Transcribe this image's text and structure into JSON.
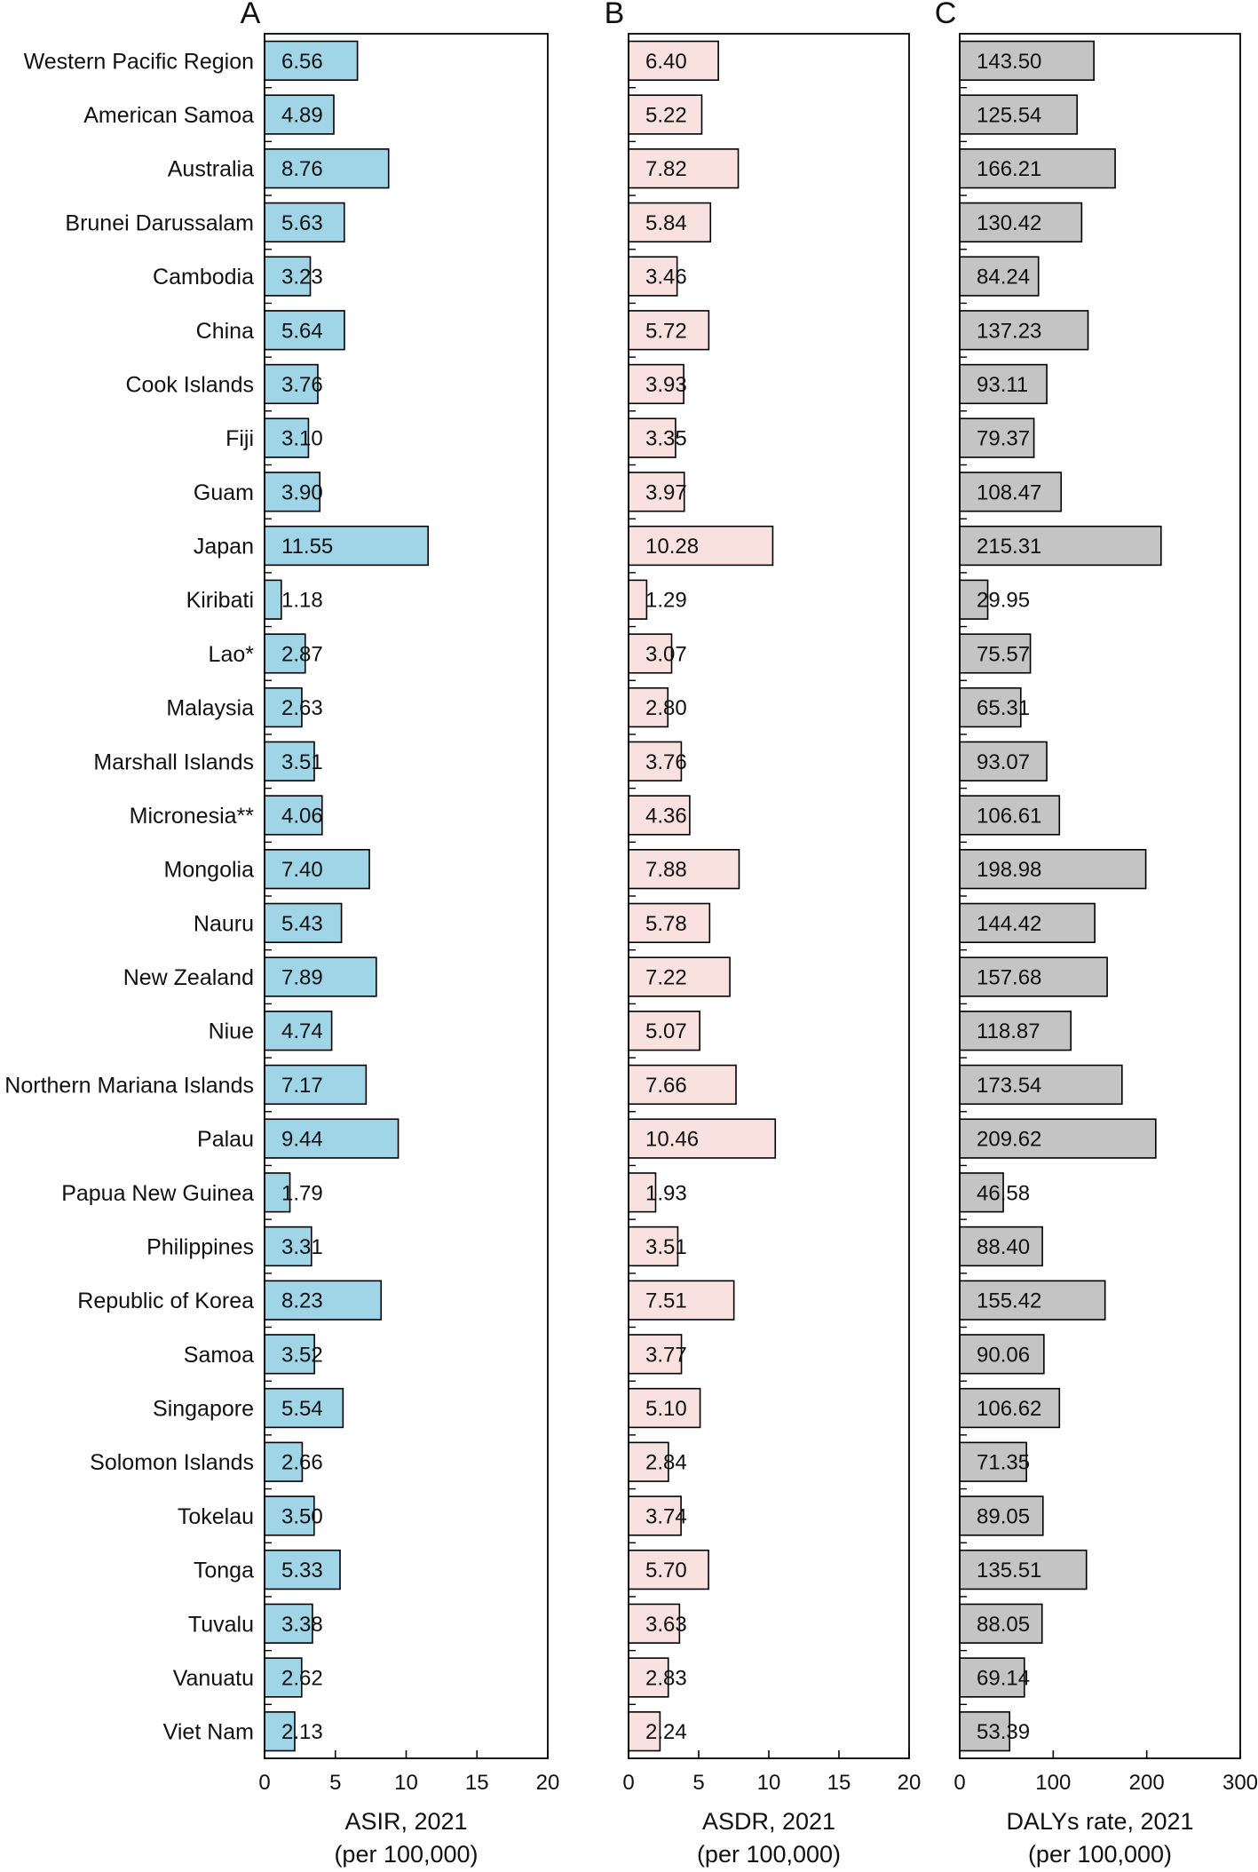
{
  "chart_data": [
    {
      "type": "bar",
      "orientation": "horizontal",
      "panel_label": "A",
      "xlabel": "ASIR, 2021",
      "xlabel_sub": "(per 100,000)",
      "xlim": [
        0,
        20
      ],
      "xticks": [
        0,
        5,
        10,
        15,
        20
      ],
      "bar_color": "#9fd5e6",
      "categories": [
        "Western Pacific Region",
        "American Samoa",
        "Australia",
        "Brunei Darussalam",
        "Cambodia",
        "China",
        "Cook Islands",
        "Fiji",
        "Guam",
        "Japan",
        "Kiribati",
        "Lao*",
        "Malaysia",
        "Marshall Islands",
        "Micronesia**",
        "Mongolia",
        "Nauru",
        "New Zealand",
        "Niue",
        "Northern Mariana Islands",
        "Palau",
        "Papua New Guinea",
        "Philippines",
        "Republic of Korea",
        "Samoa",
        "Singapore",
        "Solomon Islands",
        "Tokelau",
        "Tonga",
        "Tuvalu",
        "Vanuatu",
        "Viet Nam"
      ],
      "values": [
        6.56,
        4.89,
        8.76,
        5.63,
        3.23,
        5.64,
        3.76,
        3.1,
        3.9,
        11.55,
        1.18,
        2.87,
        2.63,
        3.51,
        4.06,
        7.4,
        5.43,
        7.89,
        4.74,
        7.17,
        9.44,
        1.79,
        3.31,
        8.23,
        3.52,
        5.54,
        2.66,
        3.5,
        5.33,
        3.38,
        2.62,
        2.13
      ],
      "value_labels": [
        "6.56",
        "4.89",
        "8.76",
        "5.63",
        "3.23",
        "5.64",
        "3.76",
        "3.10",
        "3.90",
        "11.55",
        "1.18",
        "2.87",
        "2.63",
        "3.51",
        "4.06",
        "7.40",
        "5.43",
        "7.89",
        "4.74",
        "7.17",
        "9.44",
        "1.79",
        "3.31",
        "8.23",
        "3.52",
        "5.54",
        "2.66",
        "3.50",
        "5.33",
        "3.38",
        "2.62",
        "2.13"
      ]
    },
    {
      "type": "bar",
      "orientation": "horizontal",
      "panel_label": "B",
      "xlabel": "ASDR, 2021",
      "xlabel_sub": "(per 100,000)",
      "xlim": [
        0,
        20
      ],
      "xticks": [
        0,
        5,
        10,
        15,
        20
      ],
      "bar_color": "#f8e1de",
      "categories": [
        "Western Pacific Region",
        "American Samoa",
        "Australia",
        "Brunei Darussalam",
        "Cambodia",
        "China",
        "Cook Islands",
        "Fiji",
        "Guam",
        "Japan",
        "Kiribati",
        "Lao*",
        "Malaysia",
        "Marshall Islands",
        "Micronesia**",
        "Mongolia",
        "Nauru",
        "New Zealand",
        "Niue",
        "Northern Mariana Islands",
        "Palau",
        "Papua New Guinea",
        "Philippines",
        "Republic of Korea",
        "Samoa",
        "Singapore",
        "Solomon Islands",
        "Tokelau",
        "Tonga",
        "Tuvalu",
        "Vanuatu",
        "Viet Nam"
      ],
      "values": [
        6.4,
        5.22,
        7.82,
        5.84,
        3.46,
        5.72,
        3.93,
        3.35,
        3.97,
        10.28,
        1.29,
        3.07,
        2.8,
        3.76,
        4.36,
        7.88,
        5.78,
        7.22,
        5.07,
        7.66,
        10.46,
        1.93,
        3.51,
        7.51,
        3.77,
        5.1,
        2.84,
        3.74,
        5.7,
        3.63,
        2.83,
        2.24
      ],
      "value_labels": [
        "6.40",
        "5.22",
        "7.82",
        "5.84",
        "3.46",
        "5.72",
        "3.93",
        "3.35",
        "3.97",
        "10.28",
        "1.29",
        "3.07",
        "2.80",
        "3.76",
        "4.36",
        "7.88",
        "5.78",
        "7.22",
        "5.07",
        "7.66",
        "10.46",
        "1.93",
        "3.51",
        "7.51",
        "3.77",
        "5.10",
        "2.84",
        "3.74",
        "5.70",
        "3.63",
        "2.83",
        "2.24"
      ]
    },
    {
      "type": "bar",
      "orientation": "horizontal",
      "panel_label": "C",
      "xlabel": "DALYs rate, 2021",
      "xlabel_sub": "(per 100,000)",
      "xlim": [
        0,
        300
      ],
      "xticks": [
        0,
        100,
        200,
        300
      ],
      "bar_color": "#c4c4c4",
      "categories": [
        "Western Pacific Region",
        "American Samoa",
        "Australia",
        "Brunei Darussalam",
        "Cambodia",
        "China",
        "Cook Islands",
        "Fiji",
        "Guam",
        "Japan",
        "Kiribati",
        "Lao*",
        "Malaysia",
        "Marshall Islands",
        "Micronesia**",
        "Mongolia",
        "Nauru",
        "New Zealand",
        "Niue",
        "Northern Mariana Islands",
        "Palau",
        "Papua New Guinea",
        "Philippines",
        "Republic of Korea",
        "Samoa",
        "Singapore",
        "Solomon Islands",
        "Tokelau",
        "Tonga",
        "Tuvalu",
        "Vanuatu",
        "Viet Nam"
      ],
      "values": [
        143.5,
        125.54,
        166.21,
        130.42,
        84.24,
        137.23,
        93.11,
        79.37,
        108.47,
        215.31,
        29.95,
        75.57,
        65.31,
        93.07,
        106.61,
        198.98,
        144.42,
        157.68,
        118.87,
        173.54,
        209.62,
        46.58,
        88.4,
        155.42,
        90.06,
        106.62,
        71.35,
        89.05,
        135.51,
        88.05,
        69.14,
        53.39
      ],
      "value_labels": [
        "143.50",
        "125.54",
        "166.21",
        "130.42",
        "84.24",
        "137.23",
        "93.11",
        "79.37",
        "108.47",
        "215.31",
        "29.95",
        "75.57",
        "65.31",
        "93.07",
        "106.61",
        "198.98",
        "144.42",
        "157.68",
        "118.87",
        "173.54",
        "209.62",
        "46.58",
        "88.40",
        "155.42",
        "90.06",
        "106.62",
        "71.35",
        "89.05",
        "135.51",
        "88.05",
        "69.14",
        "53.39"
      ]
    }
  ]
}
